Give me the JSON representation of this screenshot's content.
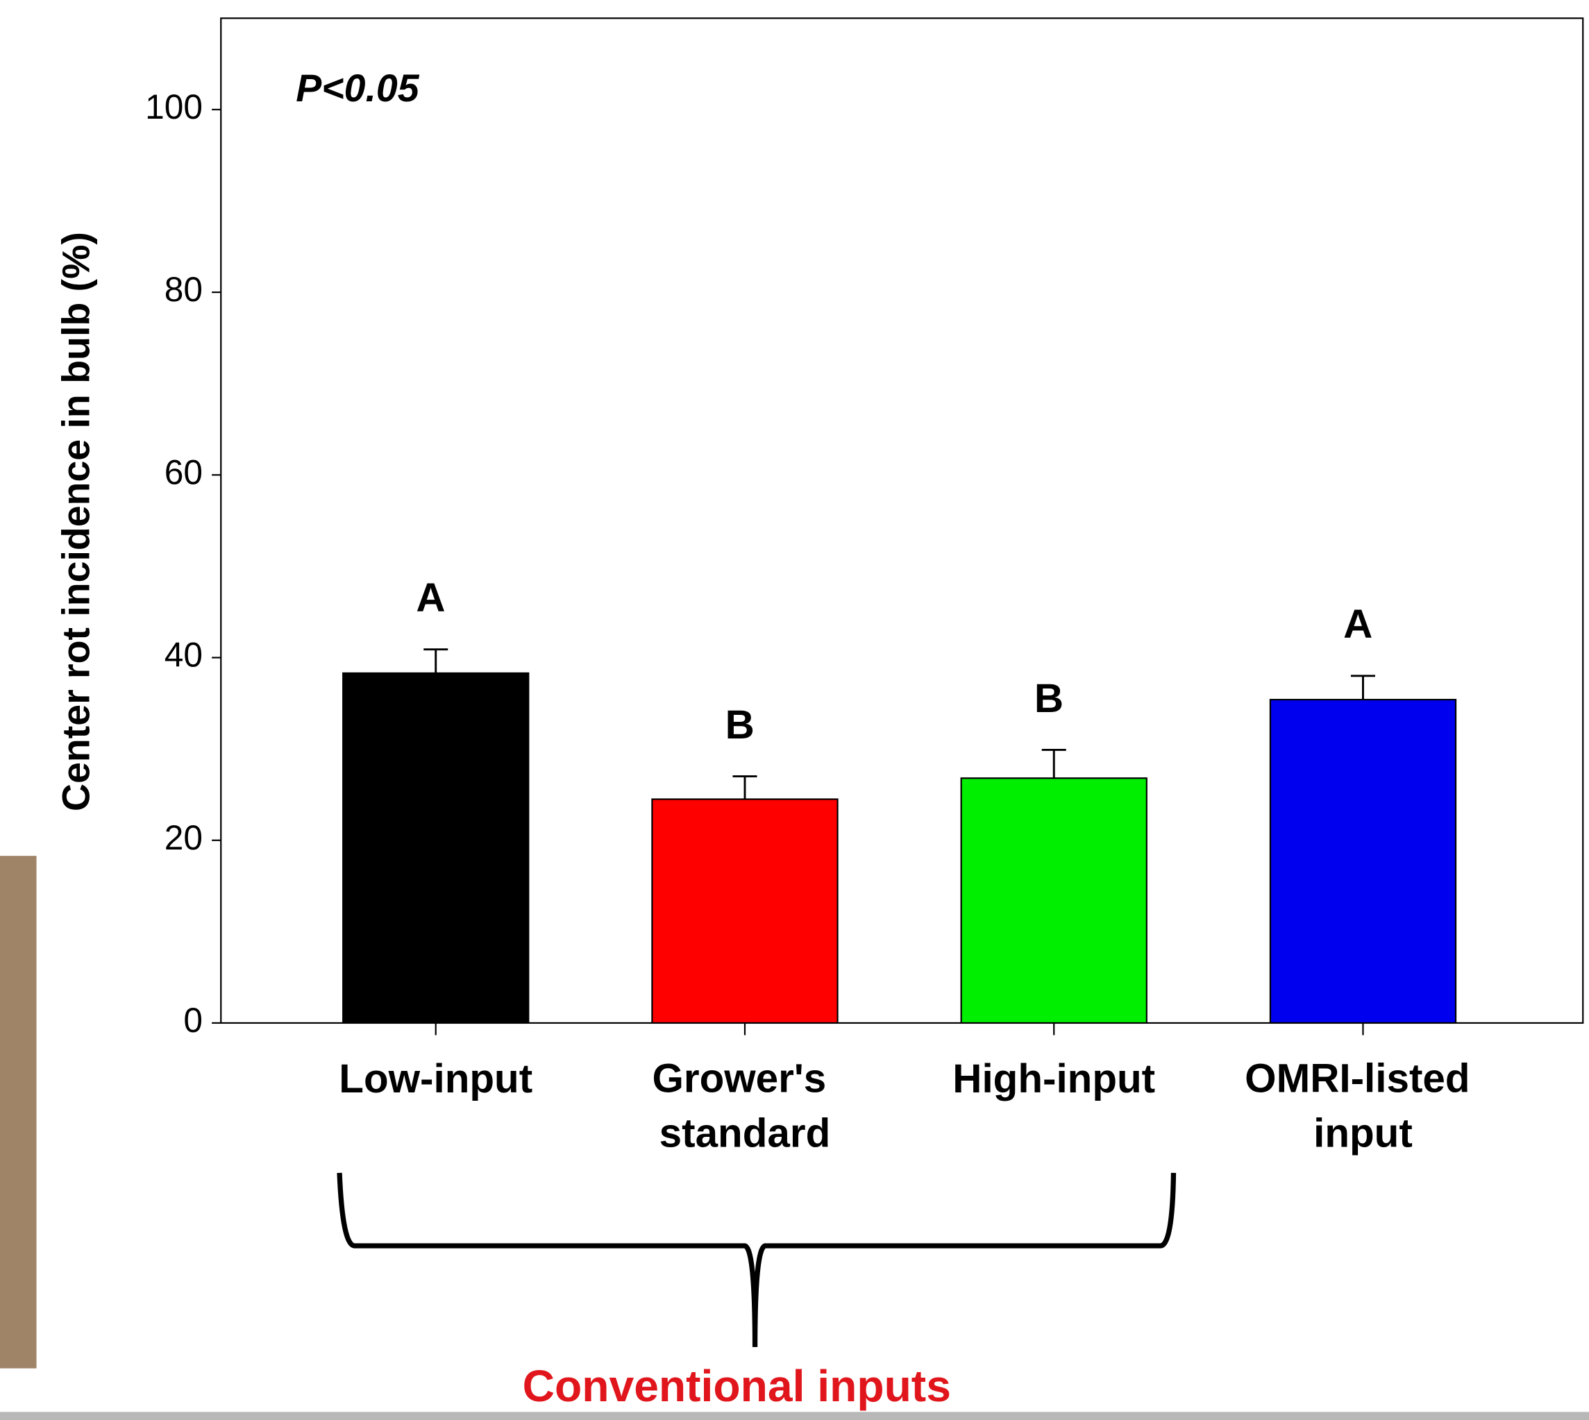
{
  "chart_data": {
    "type": "bar",
    "y_label": "Center rot incidence in bulb (%)",
    "annotation": "P<0.05",
    "group_label": "Conventional inputs",
    "categories": [
      "Low-input",
      "Grower's standard",
      "High-input",
      "OMRI-listed input"
    ],
    "values": [
      38.3,
      24.5,
      26.8,
      35.4
    ],
    "errors": [
      2.6,
      2.5,
      3.1,
      2.6
    ],
    "letters": [
      "A",
      "B",
      "B",
      "A"
    ],
    "colors": [
      "#000000",
      "#ff0000",
      "#00ee00",
      "#0000ee"
    ],
    "ylim": [
      0,
      110
    ],
    "yticks": [
      0,
      20,
      40,
      60,
      80,
      100
    ],
    "grid": false
  }
}
